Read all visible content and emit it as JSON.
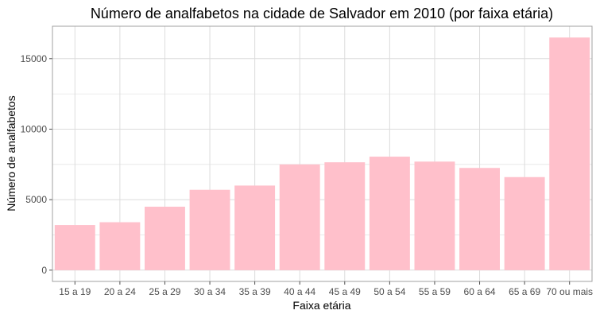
{
  "chart_data": {
    "type": "bar",
    "title": "Número de analfabetos na cidade de Salvador em 2010 (por faixa etária)",
    "xlabel": "Faixa etária",
    "ylabel": "Número de analfabetos",
    "categories": [
      "15 a 19",
      "20 a 24",
      "25 a 29",
      "30 a 34",
      "35 a 39",
      "40 a 44",
      "45 a 49",
      "50 a 54",
      "55 a 59",
      "60 a 64",
      "65 a 69",
      "70 ou mais"
    ],
    "values": [
      3200,
      3400,
      4500,
      5700,
      6000,
      7500,
      7650,
      8050,
      7700,
      7250,
      6600,
      16500
    ],
    "ylim": [
      -800,
      17300
    ],
    "yticks": [
      0,
      5000,
      10000,
      15000
    ],
    "ytick_labels": [
      "0",
      "5000",
      "10000",
      "15000"
    ],
    "grid": true,
    "bar_color": "#ffc0cb",
    "grid_color": "#dcdcdc",
    "panel_border_color": "#a0a0a0"
  }
}
